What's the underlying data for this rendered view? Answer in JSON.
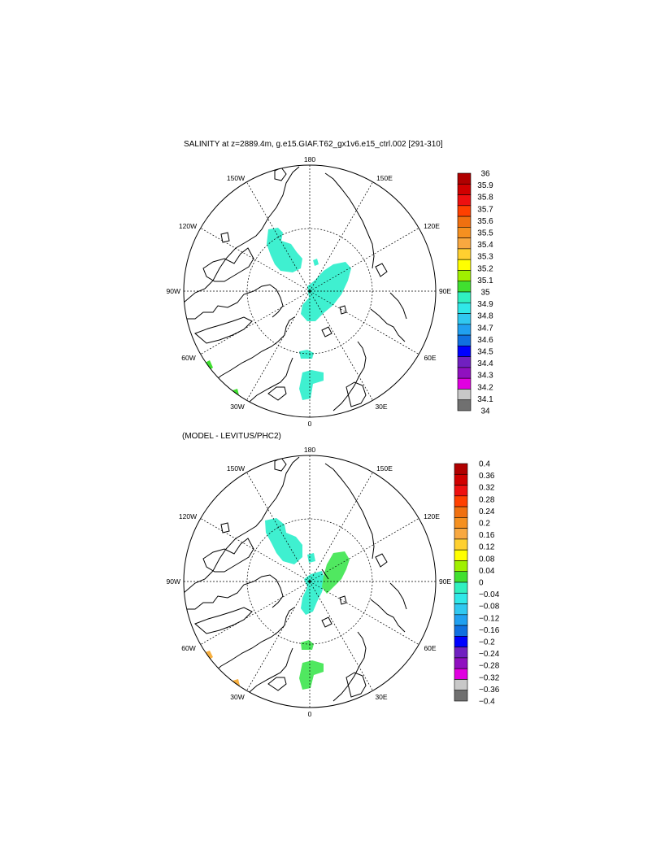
{
  "panels": [
    {
      "title": "SALINITY at z=2889.4m, g.e15.GIAF.T62_gx1v6.e15_ctrl.002 [291-310]",
      "lon_labels": {
        "top": "180",
        "bottom": "0",
        "left": "90W",
        "right": "90E",
        "ul1": "150W",
        "ul2": "120W",
        "ur1": "150E",
        "ur2": "120E",
        "ll1": "60W",
        "ll2": "30W",
        "lr1": "60E",
        "lr2": "30E"
      },
      "colorbar": {
        "labels": [
          "36",
          "35.9",
          "35.8",
          "35.7",
          "35.6",
          "35.5",
          "35.4",
          "35.3",
          "35.2",
          "35.1",
          "35",
          "34.9",
          "34.8",
          "34.7",
          "34.6",
          "34.5",
          "34.4",
          "34.3",
          "34.2",
          "34.1",
          "34"
        ],
        "colors": [
          "#b00000",
          "#d00000",
          "#ee1010",
          "#ff4000",
          "#f07010",
          "#f59020",
          "#f8a840",
          "#ffd030",
          "#ffff00",
          "#a0f000",
          "#40e030",
          "#30f0c0",
          "#30e8e8",
          "#30c8f0",
          "#20a0f0",
          "#1070e0",
          "#0000ff",
          "#7020c0",
          "#9010c0",
          "#e000e0",
          "#c8c8c8",
          "#707070"
        ]
      },
      "fill_color": "#3ff0d0"
    },
    {
      "title": "(MODEL - LEVITUS/PHC2)",
      "lon_labels": {
        "top": "180",
        "bottom": "0",
        "left": "90W",
        "right": "90E",
        "ul1": "150W",
        "ul2": "120W",
        "ur1": "150E",
        "ur2": "120E",
        "ll1": "60W",
        "ll2": "30W",
        "lr1": "60E",
        "lr2": "30E"
      },
      "colorbar": {
        "labels": [
          "0.4",
          "0.36",
          "0.32",
          "0.28",
          "0.24",
          "0.2",
          "0.16",
          "0.12",
          "0.08",
          "0.04",
          "0",
          "−0.04",
          "−0.08",
          "−0.12",
          "−0.16",
          "−0.2",
          "−0.24",
          "−0.28",
          "−0.32",
          "−0.36",
          "−0.4"
        ],
        "colors": [
          "#b00000",
          "#d00000",
          "#ee1010",
          "#ff4000",
          "#f07010",
          "#f59020",
          "#f8a840",
          "#ffd030",
          "#ffff00",
          "#a0f000",
          "#40e030",
          "#30f0c0",
          "#30e8e8",
          "#30c8f0",
          "#20a0f0",
          "#1070e0",
          "#0000ff",
          "#7020c0",
          "#9010c0",
          "#e000e0",
          "#c8c8c8",
          "#707070"
        ]
      },
      "fill_color": "#3ff0d0",
      "positive_color": "#50e860",
      "negative_patch_color": "#f8b040"
    }
  ]
}
